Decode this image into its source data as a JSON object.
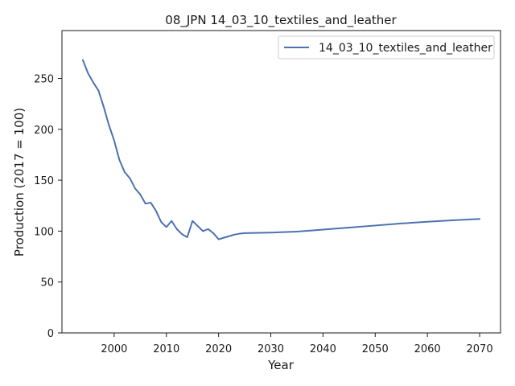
{
  "chart_data": {
    "type": "line",
    "title": "08_JPN 14_03_10_textiles_and_leather",
    "xlabel": "Year",
    "ylabel": "Production (2017 = 100)",
    "xlim": [
      1990,
      2074
    ],
    "ylim": [
      0,
      297
    ],
    "xticks": [
      2000,
      2010,
      2020,
      2030,
      2040,
      2050,
      2060,
      2070
    ],
    "yticks": [
      0,
      50,
      100,
      150,
      200,
      250
    ],
    "grid": false,
    "legend": "top-right",
    "series": [
      {
        "name": "14_03_10_textiles_and_leather",
        "color": "#4c72b0",
        "x": [
          1994,
          1995,
          1996,
          1997,
          1998,
          1999,
          2000,
          2001,
          2002,
          2003,
          2004,
          2005,
          2006,
          2007,
          2008,
          2009,
          2010,
          2011,
          2012,
          2013,
          2014,
          2015,
          2016,
          2017,
          2018,
          2019,
          2020,
          2021,
          2022,
          2023,
          2024,
          2025,
          2030,
          2035,
          2040,
          2045,
          2050,
          2055,
          2060,
          2065,
          2070
        ],
        "y": [
          268,
          255,
          246,
          238,
          222,
          204,
          189,
          170,
          158,
          152,
          142,
          136,
          127,
          128,
          120,
          109,
          104,
          110,
          102,
          97,
          94,
          110,
          105,
          100,
          102,
          98,
          92,
          93.5,
          95,
          96.5,
          97.5,
          98,
          98.5,
          99.5,
          101.5,
          103.5,
          105.5,
          107.5,
          109.2,
          110.7,
          112
        ]
      }
    ]
  }
}
